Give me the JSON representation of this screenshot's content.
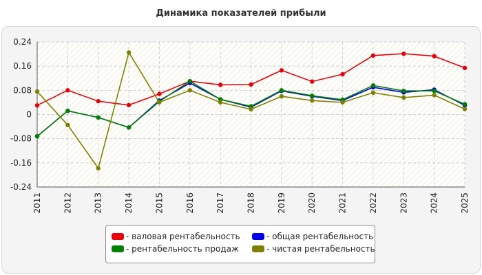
{
  "chart_data": {
    "type": "line",
    "title": "Динамика показателей прибыли",
    "categories": [
      "2011",
      "2012",
      "2013",
      "2014",
      "2015",
      "2016",
      "2017",
      "2018",
      "2019",
      "2020",
      "2021",
      "2022",
      "2023",
      "2024",
      "2025"
    ],
    "ylim": [
      -0.24,
      0.24
    ],
    "yticks": [
      "-0.24",
      "-0.16",
      "-0.08",
      "0",
      "0.08",
      "0.16",
      "0.24"
    ],
    "grid": true,
    "legend_position": "bottom",
    "series": [
      {
        "name": "- валовая рентабельность",
        "color": "#e8000b",
        "values": [
          0.03,
          0.08,
          0.044,
          0.031,
          0.068,
          0.11,
          0.098,
          0.099,
          0.146,
          0.109,
          0.133,
          0.195,
          0.201,
          0.193,
          0.154
        ]
      },
      {
        "name": "- общая рентабельность",
        "color": "#0000e8",
        "values": [
          -0.072,
          0.012,
          -0.01,
          -0.043,
          0.046,
          0.104,
          0.05,
          0.024,
          0.078,
          0.06,
          0.046,
          0.09,
          0.073,
          0.082,
          0.03
        ]
      },
      {
        "name": "- рентабельность продаж",
        "color": "#008000",
        "values": [
          -0.072,
          0.012,
          -0.01,
          -0.043,
          0.043,
          0.11,
          0.05,
          0.027,
          0.08,
          0.062,
          0.049,
          0.096,
          0.078,
          0.078,
          0.034
        ]
      },
      {
        "name": "- чистая рентабельность",
        "color": "#808000",
        "values": [
          0.076,
          -0.035,
          -0.178,
          0.205,
          0.04,
          0.08,
          0.04,
          0.017,
          0.06,
          0.046,
          0.04,
          0.072,
          0.056,
          0.064,
          0.018
        ]
      }
    ]
  }
}
